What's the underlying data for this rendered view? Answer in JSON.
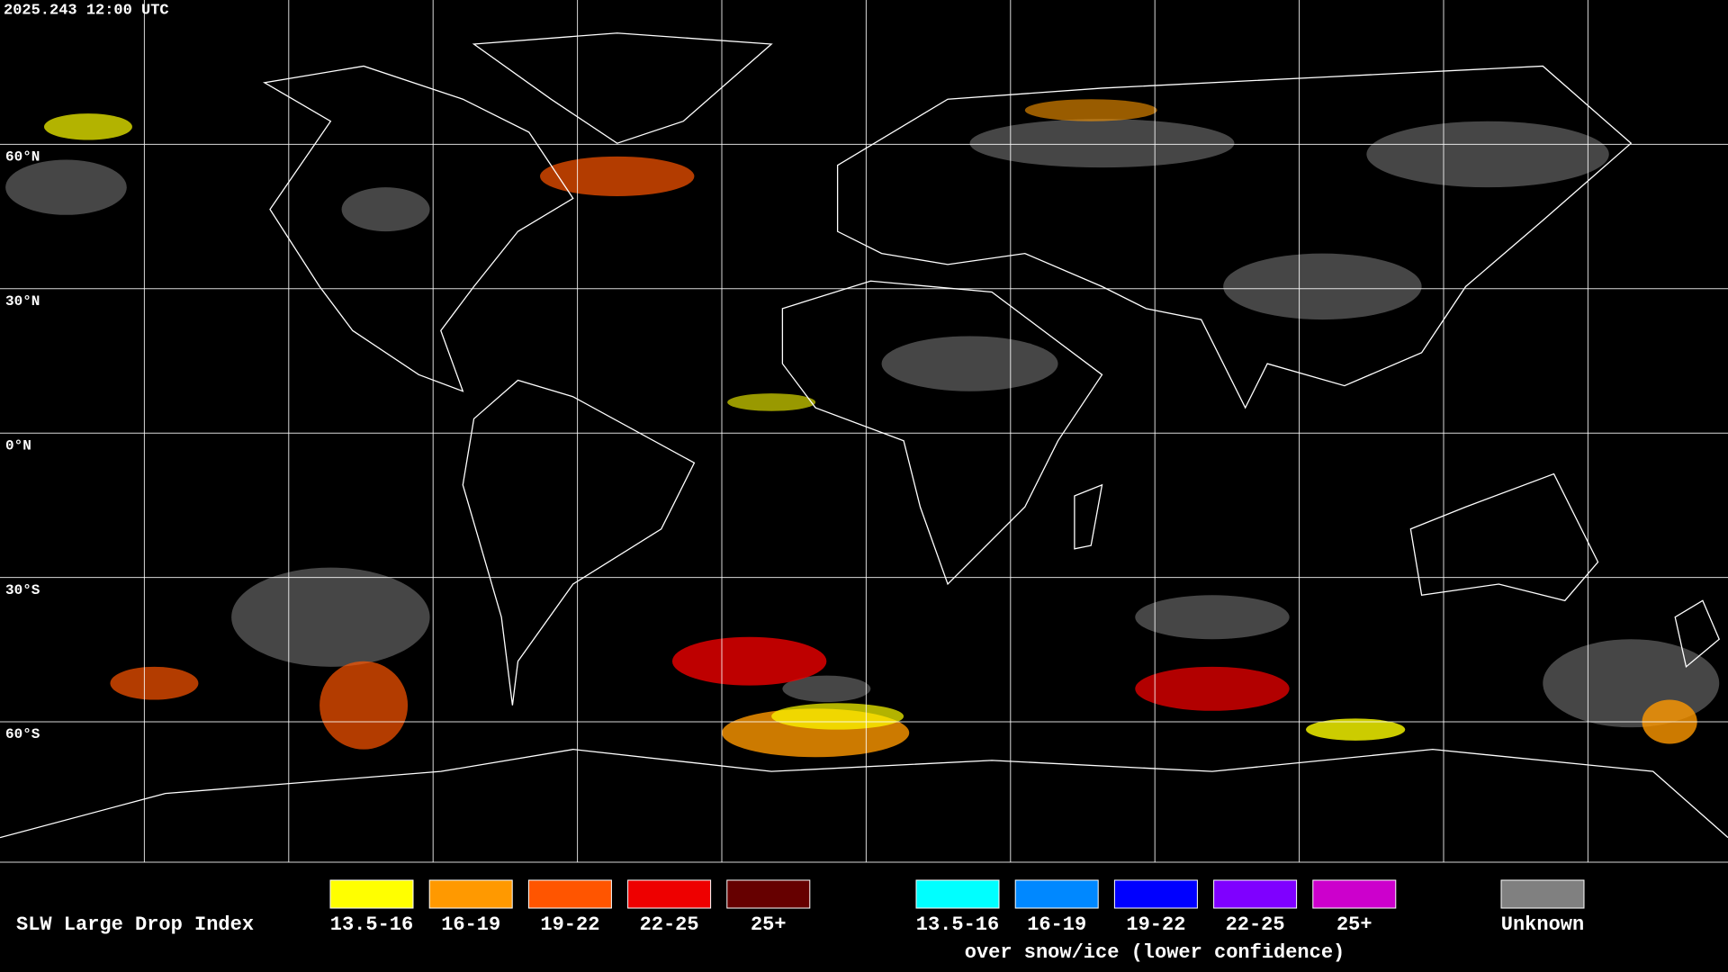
{
  "header": {
    "timestamp": "2025.243 12:00 UTC"
  },
  "map": {
    "lat_labels": [
      "60°N",
      "30°N",
      "0°N",
      "30°S",
      "60°S"
    ]
  },
  "legend": {
    "title": "SLW Large Drop Index",
    "normal": [
      {
        "label": "13.5-16",
        "color": "#ffff00"
      },
      {
        "label": "16-19",
        "color": "#ff9900"
      },
      {
        "label": "19-22",
        "color": "#ff5500"
      },
      {
        "label": "22-25",
        "color": "#ee0000"
      },
      {
        "label": "25+",
        "color": "#660000"
      }
    ],
    "snow_ice": [
      {
        "label": "13.5-16",
        "color": "#00ffff"
      },
      {
        "label": "16-19",
        "color": "#0088ff"
      },
      {
        "label": "19-22",
        "color": "#0000ff"
      },
      {
        "label": "22-25",
        "color": "#7f00ff"
      },
      {
        "label": "25+",
        "color": "#cc00cc"
      }
    ],
    "snow_ice_caption": "over snow/ice (lower confidence)",
    "unknown": {
      "label": "Unknown",
      "color": "#808080"
    }
  }
}
